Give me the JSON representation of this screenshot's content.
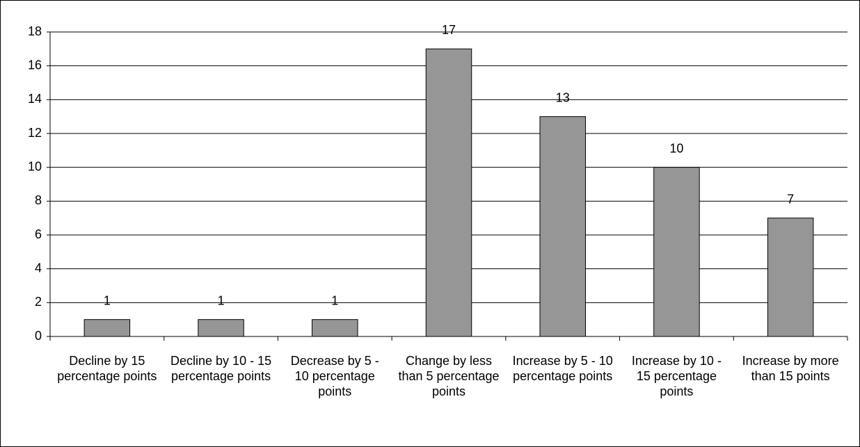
{
  "chart_data": {
    "type": "bar",
    "categories": [
      "Decline by 15 percentage points",
      "Decline by 10 - 15 percentage points",
      "Decrease by 5 - 10 percentage points",
      "Change by less than 5 percentage points",
      "Increase by 5 - 10 percentage points",
      "Increase by 10 - 15 percentage points",
      "Increase by more than 15 points"
    ],
    "values": [
      1,
      1,
      1,
      17,
      13,
      10,
      7
    ],
    "color": "#969696",
    "ylim": [
      0,
      18
    ],
    "yticks": [
      0,
      2,
      4,
      6,
      8,
      10,
      12,
      14,
      16,
      18
    ],
    "grid": true
  }
}
